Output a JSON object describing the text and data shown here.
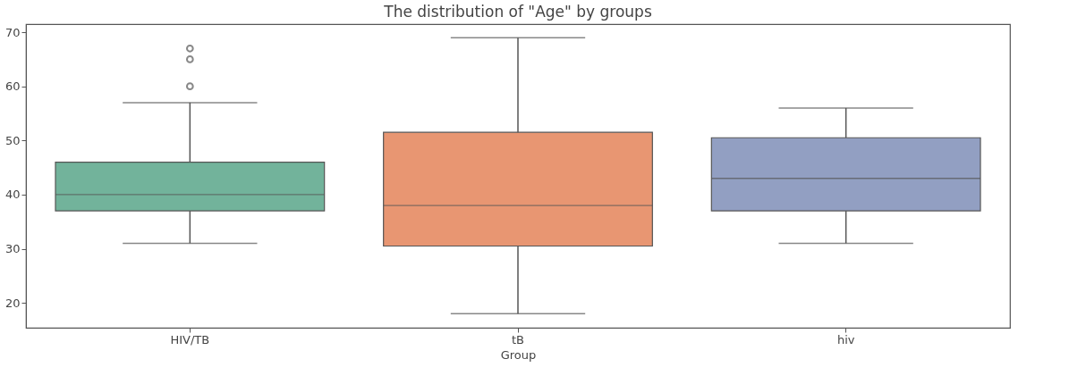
{
  "chart_data": {
    "type": "box",
    "title": "The distribution of \"Age\" by groups",
    "xlabel": "Group",
    "categories": [
      "HIV/TB",
      "tB",
      "hiv"
    ],
    "colors": [
      "#72b39b",
      "#e89672",
      "#929fc2"
    ],
    "boxes": [
      {
        "low": 31,
        "q1": 37,
        "median": 40,
        "q3": 46,
        "high": 57,
        "outliers": [
          60,
          65,
          67
        ]
      },
      {
        "low": 18,
        "q1": 30.5,
        "median": 38,
        "q3": 51.5,
        "high": 69
      },
      {
        "low": 31,
        "q1": 37,
        "median": 43,
        "q3": 50.5,
        "high": 56
      }
    ],
    "ylim": [
      15.4,
      71.5
    ],
    "yticks": [
      20,
      30,
      40,
      50,
      60,
      70
    ],
    "grid": false
  }
}
